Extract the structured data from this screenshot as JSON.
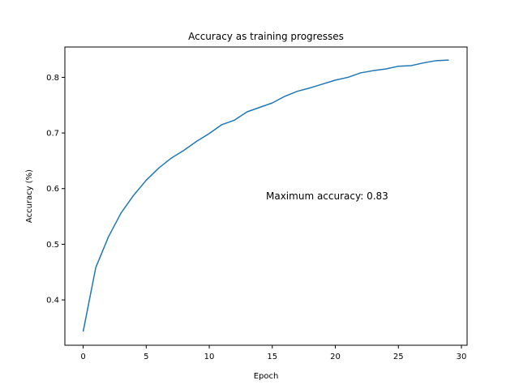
{
  "chart_data": {
    "type": "line",
    "title": "Accuracy as training progresses",
    "xlabel": "Epoch",
    "ylabel": "Accuracy (%)",
    "xlim": [
      -1.45,
      30.45
    ],
    "ylim": [
      0.3185,
      0.8545
    ],
    "xticks": [
      0,
      5,
      10,
      15,
      20,
      25,
      30
    ],
    "yticks": [
      0.4,
      0.5,
      0.6,
      0.7,
      0.8
    ],
    "grid": false,
    "series": [
      {
        "color": "#1f77b4",
        "x": [
          0,
          1,
          2,
          3,
          4,
          5,
          6,
          7,
          8,
          9,
          10,
          11,
          12,
          13,
          14,
          15,
          16,
          17,
          18,
          19,
          20,
          21,
          22,
          23,
          24,
          25,
          26,
          27,
          28,
          29
        ],
        "y": [
          0.343,
          0.458,
          0.513,
          0.556,
          0.588,
          0.615,
          0.637,
          0.655,
          0.669,
          0.685,
          0.699,
          0.715,
          0.723,
          0.738,
          0.746,
          0.754,
          0.766,
          0.775,
          0.781,
          0.788,
          0.795,
          0.8,
          0.808,
          0.812,
          0.815,
          0.82,
          0.821,
          0.826,
          0.83,
          0.831
        ]
      }
    ],
    "annotation": {
      "text": "Maximum accuracy: 0.83",
      "x": 14.5,
      "y": 0.588
    }
  }
}
